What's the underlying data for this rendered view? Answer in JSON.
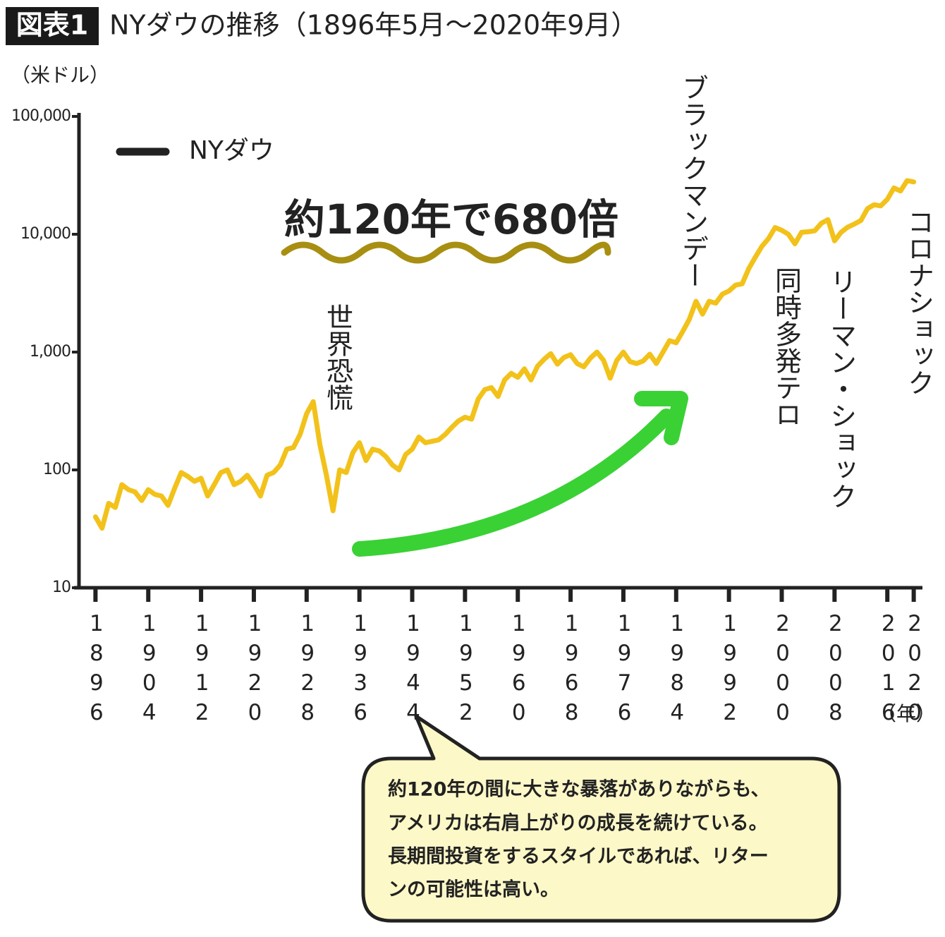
{
  "chart_data": {
    "type": "line",
    "badge": "図表1",
    "title": "NYダウの推移（1896年5月～2020年9月）",
    "y_label": "（米ドル）",
    "x_label": "（年）",
    "log_scale": true,
    "xlim": [
      1893.5,
      2021
    ],
    "xticks": [
      1896,
      1904,
      1912,
      1920,
      1928,
      1936,
      1944,
      1952,
      1960,
      1968,
      1976,
      1984,
      1992,
      2000,
      2008,
      2016,
      2020
    ],
    "ylim": [
      10,
      100000
    ],
    "yticks": [
      10,
      100,
      {
        "value": 1000,
        "label": "1,000"
      },
      {
        "value": 10000,
        "label": "10,000"
      },
      {
        "value": 100000,
        "label": "100,000"
      }
    ],
    "x": [
      1896,
      1897,
      1898,
      1899,
      1900,
      1901,
      1902,
      1903,
      1904,
      1905,
      1906,
      1907,
      1908,
      1909,
      1910,
      1911,
      1912,
      1913,
      1914,
      1915,
      1916,
      1917,
      1918,
      1919,
      1920,
      1921,
      1922,
      1923,
      1924,
      1925,
      1926,
      1927,
      1928,
      1929,
      1930,
      1931,
      1932,
      1933,
      1934,
      1935,
      1936,
      1937,
      1938,
      1939,
      1940,
      1941,
      1942,
      1943,
      1944,
      1945,
      1946,
      1947,
      1948,
      1949,
      1950,
      1951,
      1952,
      1953,
      1954,
      1955,
      1956,
      1957,
      1958,
      1959,
      1960,
      1961,
      1962,
      1963,
      1964,
      1965,
      1966,
      1967,
      1968,
      1969,
      1970,
      1971,
      1972,
      1973,
      1974,
      1975,
      1976,
      1977,
      1978,
      1979,
      1980,
      1981,
      1982,
      1983,
      1984,
      1985,
      1986,
      1987,
      1988,
      1989,
      1990,
      1991,
      1992,
      1993,
      1994,
      1995,
      1996,
      1997,
      1998,
      1999,
      2000,
      2001,
      2002,
      2003,
      2004,
      2005,
      2006,
      2007,
      2008,
      2009,
      2010,
      2011,
      2012,
      2013,
      2014,
      2015,
      2016,
      2017,
      2018,
      2019,
      2020
    ],
    "series": [
      {
        "name": "NYダウ",
        "color": "#f2c21b",
        "values": [
          40,
          32,
          52,
          48,
          75,
          68,
          65,
          55,
          68,
          62,
          60,
          50,
          70,
          95,
          88,
          80,
          85,
          60,
          75,
          95,
          100,
          75,
          80,
          90,
          75,
          60,
          90,
          95,
          110,
          150,
          155,
          200,
          300,
          380,
          165,
          90,
          45,
          100,
          95,
          140,
          170,
          120,
          150,
          145,
          130,
          110,
          100,
          135,
          150,
          190,
          170,
          175,
          180,
          200,
          230,
          260,
          280,
          270,
          400,
          480,
          500,
          420,
          580,
          660,
          610,
          720,
          580,
          760,
          870,
          970,
          790,
          900,
          950,
          800,
          750,
          890,
          1000,
          850,
          600,
          850,
          1000,
          830,
          800,
          840,
          960,
          800,
          1000,
          1250,
          1200,
          1500,
          1900,
          2700,
          2100,
          2700,
          2600,
          3100,
          3300,
          3700,
          3800,
          5100,
          6400,
          7900,
          9200,
          11400,
          10800,
          10000,
          8300,
          10400,
          10500,
          10700,
          12400,
          13300,
          8800,
          10400,
          11500,
          12200,
          13100,
          16500,
          17800,
          17400,
          19800,
          24700,
          23300,
          28500,
          27800
        ]
      }
    ],
    "headline": "約120年で680倍",
    "annotations": [
      "世界恐慌",
      "ブラックマンデー",
      "同時多発テロ",
      "リーマン・ショック",
      "コロナショック"
    ],
    "note": [
      "約120年の間に大きな暴落がありながらも、",
      "アメリカは右肩上がりの成長を続けている。",
      "長期間投資をするスタイルであれば、リター",
      "ンの可能性は高い。"
    ]
  }
}
